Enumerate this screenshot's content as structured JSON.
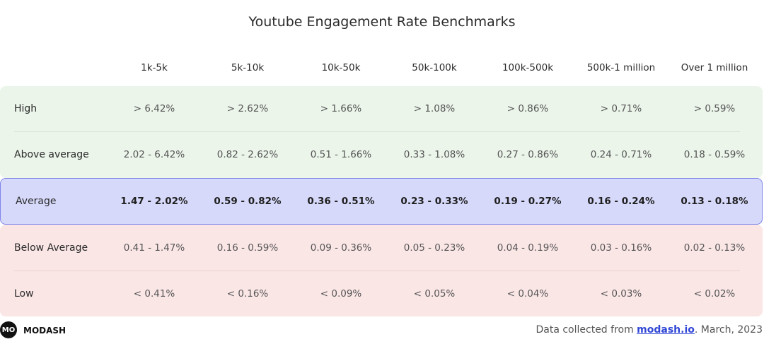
{
  "chart_data": {
    "type": "table",
    "title": "Youtube Engagement Rate Benchmarks",
    "columns": [
      "1k-5k",
      "5k-10k",
      "10k-50k",
      "50k-100k",
      "100k-500k",
      "500k-1 million",
      "Over 1 million"
    ],
    "rows": [
      {
        "label": "High",
        "values": [
          "> 6.42%",
          "> 2.62%",
          "> 1.66%",
          "> 1.08%",
          "> 0.86%",
          "> 0.71%",
          "> 0.59%"
        ]
      },
      {
        "label": "Above average",
        "values": [
          "2.02 - 6.42%",
          "0.82 - 2.62%",
          "0.51 - 1.66%",
          "0.33 - 1.08%",
          "0.27 - 0.86%",
          "0.24 - 0.71%",
          "0.18 - 0.59%"
        ]
      },
      {
        "label": "Average",
        "values": [
          "1.47 - 2.02%",
          "0.59 - 0.82%",
          "0.36 - 0.51%",
          "0.23 - 0.33%",
          "0.19 - 0.27%",
          "0.16 - 0.24%",
          "0.13 - 0.18%"
        ]
      },
      {
        "label": "Below Average",
        "values": [
          "0.41 - 1.47%",
          "0.16 - 0.59%",
          "0.09 - 0.36%",
          "0.05 - 0.23%",
          "0.04 - 0.19%",
          "0.03 - 0.16%",
          "0.02 - 0.13%"
        ]
      },
      {
        "label": "Low",
        "values": [
          "< 0.41%",
          "< 0.16%",
          "< 0.09%",
          "< 0.05%",
          "< 0.04%",
          "< 0.03%",
          "< 0.02%"
        ]
      }
    ],
    "colors": {
      "high_band": "#ebf5ea",
      "average_band": "#d6d9fa",
      "average_border": "#7e85e9",
      "low_band": "#fbe6e6"
    }
  },
  "footer": {
    "logo_mark": "MO",
    "brand": "MODASH",
    "note_prefix": "Data collected from ",
    "note_link": "modash.io",
    "note_suffix": ". March, 2023"
  }
}
